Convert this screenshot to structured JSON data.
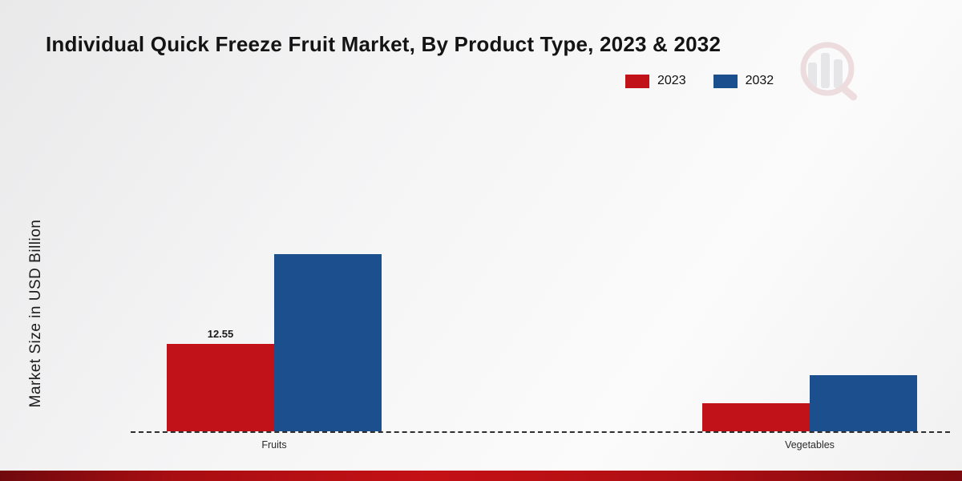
{
  "title": "Individual Quick Freeze Fruit Market, By Product Type, 2023 & 2032",
  "ylabel": "Market Size in USD Billion",
  "legend": [
    {
      "label": "2023",
      "color": "#c1121a"
    },
    {
      "label": "2032",
      "color": "#1b4f8e"
    }
  ],
  "colors": {
    "accent_red": "#c1121a",
    "accent_blue": "#1b4f8e",
    "footer_band": "#a80e12",
    "axis": "#2e2e2e"
  },
  "chart_data": {
    "type": "bar",
    "title": "Individual Quick Freeze Fruit Market, By Product Type, 2023 & 2032",
    "categories": [
      "Fruits",
      "Vegetables"
    ],
    "series": [
      {
        "name": "2023",
        "color": "#c1121a",
        "values": [
          12.55,
          4.0
        ]
      },
      {
        "name": "2032",
        "color": "#1b4f8e",
        "values": [
          25.5,
          8.1
        ]
      }
    ],
    "xlabel": "",
    "ylabel": "Market Size in USD Billion",
    "ylim": [
      0,
      45
    ],
    "grid": false,
    "legend_position": "top-right",
    "annotations": [
      {
        "series": 0,
        "category": 0,
        "text": "12.55"
      }
    ]
  }
}
